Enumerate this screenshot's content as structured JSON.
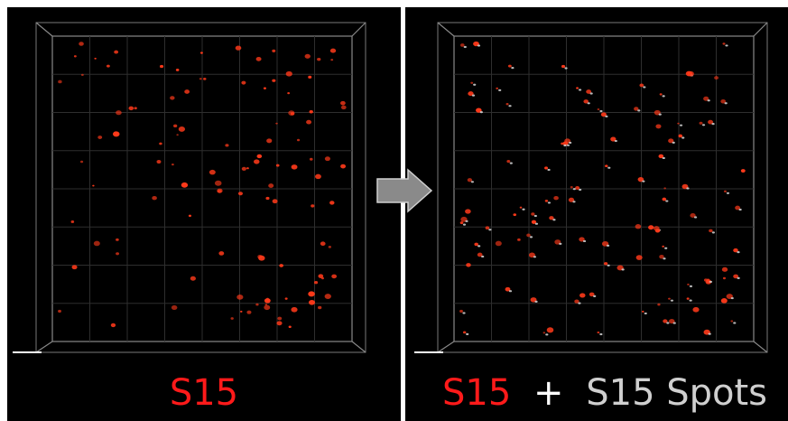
{
  "panels": [
    {
      "label": "S15"
    },
    {
      "label_parts": [
        "S15",
        "+",
        "S15 Spots"
      ]
    }
  ]
}
